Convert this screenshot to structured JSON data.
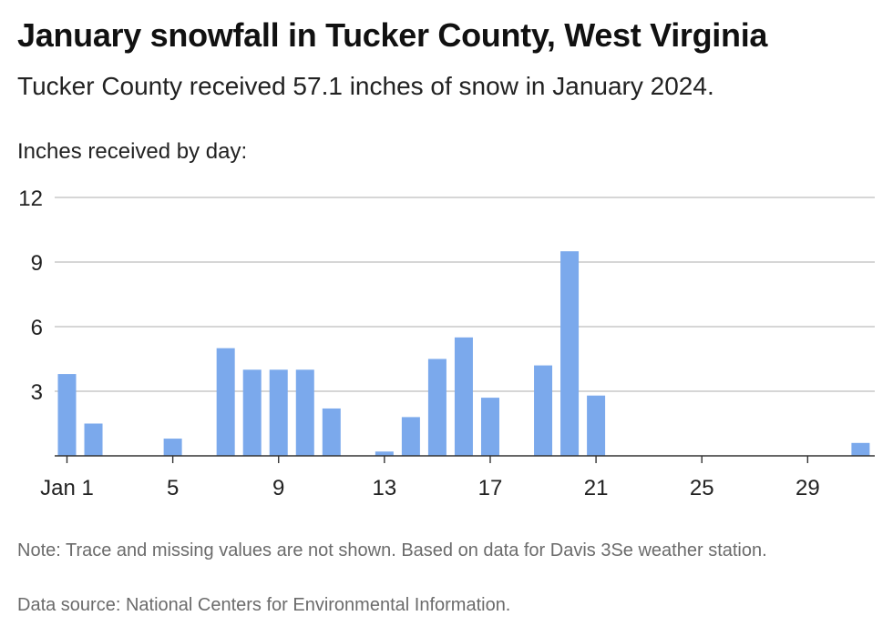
{
  "header": {
    "title": "January snowfall in Tucker County, West Virginia",
    "subtitle": "Tucker County received 57.1 inches of snow in January 2024.",
    "axis_caption": "Inches received by day:"
  },
  "footer": {
    "note": "Note: Trace and missing values are not shown. Based on data for Davis 3Se weather station.",
    "source": "Data source: National Centers for Environmental Information."
  },
  "colors": {
    "bar": "#7ba9ec",
    "grid": "#bdbdbd",
    "axis": "#333333"
  },
  "chart_data": {
    "type": "bar",
    "ylabel": "Inches received by day:",
    "ylim": [
      0,
      12
    ],
    "yticks": [
      3,
      6,
      9,
      12
    ],
    "xlim": [
      1,
      31
    ],
    "xticks": [
      {
        "day": 1,
        "label": "Jan 1"
      },
      {
        "day": 5,
        "label": "5"
      },
      {
        "day": 9,
        "label": "9"
      },
      {
        "day": 13,
        "label": "13"
      },
      {
        "day": 17,
        "label": "17"
      },
      {
        "day": 21,
        "label": "21"
      },
      {
        "day": 25,
        "label": "25"
      },
      {
        "day": 29,
        "label": "29"
      }
    ],
    "grid": true,
    "days": [
      1,
      2,
      5,
      7,
      8,
      9,
      10,
      11,
      13,
      14,
      15,
      16,
      17,
      19,
      20,
      21,
      31
    ],
    "values": [
      3.8,
      1.5,
      0.8,
      5.0,
      4.0,
      4.0,
      4.0,
      2.2,
      0.2,
      1.8,
      4.5,
      5.5,
      2.7,
      4.2,
      9.5,
      2.8,
      0.6
    ]
  }
}
